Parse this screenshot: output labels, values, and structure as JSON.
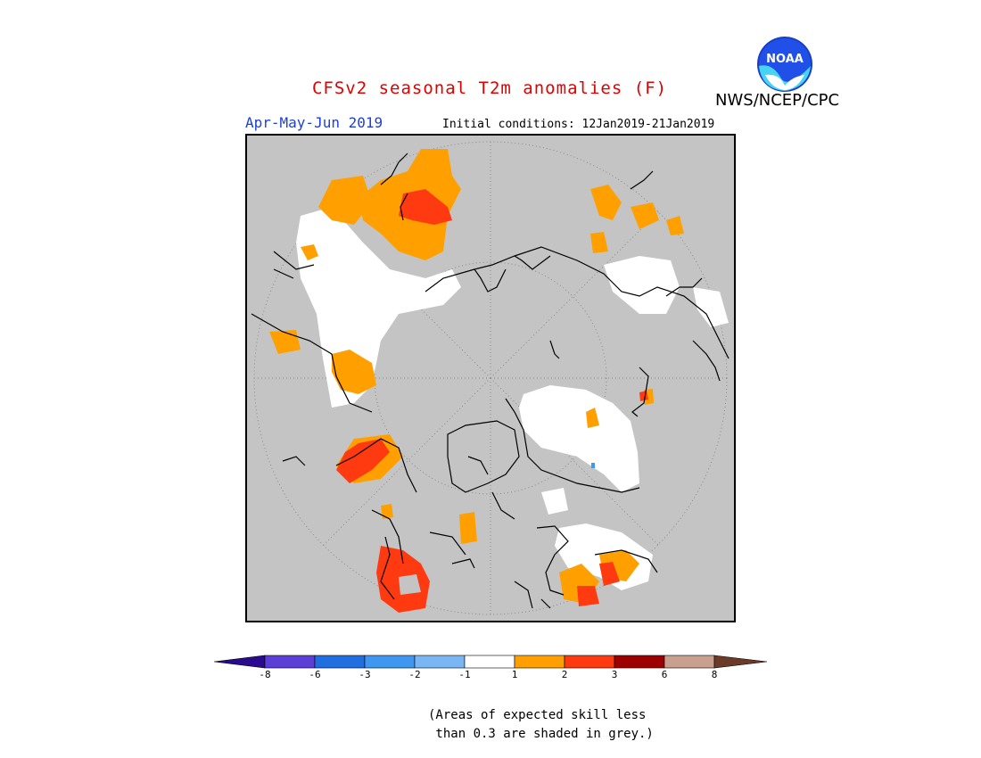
{
  "header": {
    "title": "CFSv2 seasonal T2m anomalies (F)",
    "season": "Apr-May-Jun 2019",
    "initial_conditions": "Initial conditions: 12Jan2019-21Jan2019",
    "organization": "NWS/NCEP/CPC",
    "logo_text": "NOAA"
  },
  "colors": {
    "grey_low_skill": "#c4c4c4",
    "bins": [
      "#2a0a8f",
      "#5b3fd6",
      "#1f6fe0",
      "#3f97f0",
      "#7ab6f4",
      "#ffffff",
      "#ffa000",
      "#ff3a10",
      "#9c0000",
      "#c9a08e",
      "#6b3a28"
    ]
  },
  "colorbar": {
    "ticks": [
      "-8",
      "-6",
      "-3",
      "-2",
      "-1",
      "1",
      "2",
      "3",
      "6",
      "8"
    ]
  },
  "map": {
    "projection": "north polar stereographic",
    "shading": {
      "grey": "expected skill < 0.3",
      "white": "-1 to 1",
      "orange": "1 to 2",
      "red": "2 to 3",
      "blue": "-3 to -2"
    }
  },
  "footnote": {
    "line1": "(Areas of expected skill less",
    "line2": " than 0.3 are shaded in grey.)"
  }
}
